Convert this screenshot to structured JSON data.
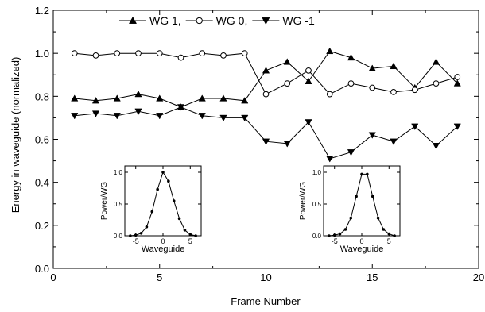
{
  "chart_data": {
    "type": "line",
    "xlabel": "Frame Number",
    "ylabel": "Energy in waveguide (normalized)",
    "xlim": [
      0,
      20
    ],
    "ylim": [
      0.0,
      1.2
    ],
    "x_ticks": [
      0,
      5,
      10,
      15,
      20
    ],
    "y_ticks": [
      0.0,
      0.2,
      0.4,
      0.6,
      0.8,
      1.0,
      1.2
    ],
    "x_tick_labels": [
      "0",
      "5",
      "10",
      "15",
      "20"
    ],
    "y_tick_labels": [
      "0.0",
      "0.2",
      "0.4",
      "0.6",
      "0.8",
      "1.0",
      "1.2"
    ],
    "legend_position": "top",
    "series": [
      {
        "name": "WG 1,",
        "marker": "triangle-up",
        "x": [
          1,
          2,
          3,
          4,
          5,
          6,
          7,
          8,
          9,
          10,
          11,
          12,
          13,
          14,
          15,
          16,
          17,
          18,
          19
        ],
        "y": [
          0.79,
          0.78,
          0.79,
          0.81,
          0.79,
          0.75,
          0.79,
          0.79,
          0.78,
          0.92,
          0.96,
          0.87,
          1.01,
          0.98,
          0.93,
          0.94,
          0.84,
          0.96,
          0.86
        ]
      },
      {
        "name": "WG 0,",
        "marker": "circle-open",
        "x": [
          1,
          2,
          3,
          4,
          5,
          6,
          7,
          8,
          9,
          10,
          11,
          12,
          13,
          14,
          15,
          16,
          17,
          18,
          19
        ],
        "y": [
          1.0,
          0.99,
          1.0,
          1.0,
          1.0,
          0.98,
          1.0,
          0.99,
          1.0,
          0.81,
          0.86,
          0.92,
          0.81,
          0.86,
          0.84,
          0.82,
          0.83,
          0.86,
          0.89
        ]
      },
      {
        "name": "WG -1",
        "marker": "triangle-down",
        "x": [
          1,
          2,
          3,
          4,
          5,
          6,
          7,
          8,
          9,
          10,
          11,
          12,
          13,
          14,
          15,
          16,
          17,
          18,
          19
        ],
        "y": [
          0.71,
          0.72,
          0.71,
          0.73,
          0.71,
          0.75,
          0.71,
          0.7,
          0.7,
          0.59,
          0.58,
          0.68,
          0.51,
          0.54,
          0.62,
          0.59,
          0.66,
          0.57,
          0.66
        ]
      }
    ],
    "insets": [
      {
        "type": "line",
        "xlabel": "Waveguide",
        "ylabel": "Power/WG",
        "xlim": [
          -7,
          7
        ],
        "ylim": [
          0.0,
          1.1
        ],
        "x_ticks": [
          -5,
          0,
          5
        ],
        "y_ticks": [
          0.0,
          0.5,
          1.0
        ],
        "x_tick_labels": [
          "-5",
          "0",
          "5"
        ],
        "y_tick_labels": [
          "0.0",
          "0.5",
          "1.0"
        ],
        "x": [
          -6,
          -5,
          -4,
          -3,
          -2,
          -1,
          0,
          1,
          2,
          3,
          4,
          5,
          6
        ],
        "y": [
          0.0,
          0.01,
          0.04,
          0.14,
          0.38,
          0.73,
          1.0,
          0.86,
          0.55,
          0.27,
          0.09,
          0.02,
          0.0
        ]
      },
      {
        "type": "line",
        "xlabel": "Waveguide",
        "ylabel": "Power/WG",
        "xlim": [
          -7,
          7
        ],
        "ylim": [
          0.0,
          1.1
        ],
        "x_ticks": [
          -5,
          0,
          5
        ],
        "y_ticks": [
          0.0,
          0.5,
          1.0
        ],
        "x_tick_labels": [
          "-5",
          "0",
          "5"
        ],
        "y_tick_labels": [
          "0.0",
          "0.5",
          "1.0"
        ],
        "x": [
          -6,
          -5,
          -4,
          -3,
          -2,
          -1,
          0,
          1,
          2,
          3,
          4,
          5,
          6
        ],
        "y": [
          0.0,
          0.01,
          0.03,
          0.1,
          0.28,
          0.62,
          0.97,
          0.97,
          0.62,
          0.28,
          0.1,
          0.03,
          0.0
        ]
      }
    ]
  }
}
